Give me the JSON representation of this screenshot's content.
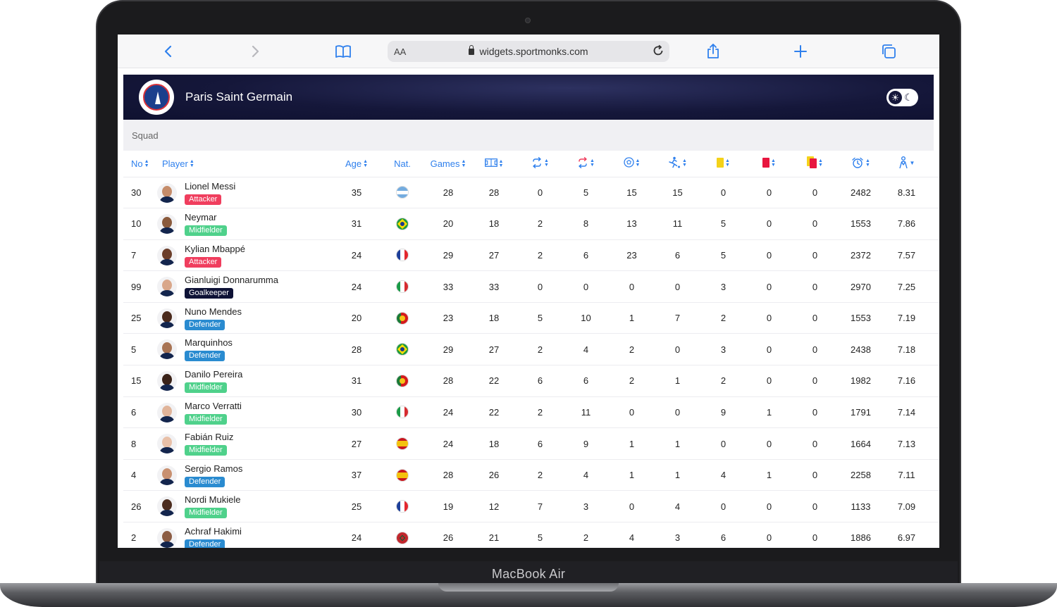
{
  "device": {
    "brand": "MacBook Air"
  },
  "browser": {
    "aa_label": "AA",
    "url": "widgets.sportmonks.com"
  },
  "team": {
    "name": "Paris Saint Germain"
  },
  "tabs": [
    "Squad"
  ],
  "colors": {
    "Attacker": "#f03e5e",
    "Midfielder": "#4fd18b",
    "Goalkeeper": "#0e1236",
    "Defender": "#2a8bd0",
    "accent": "#2f80ed"
  },
  "columns": {
    "no": "No",
    "player": "Player",
    "age": "Age",
    "nat": "Nat.",
    "games": "Games",
    "icons": [
      "lineups-pitch-icon",
      "subbed-in-icon",
      "subbed-out-icon",
      "goals-ball-icon",
      "assists-icon",
      "yellow-card-icon",
      "red-card-icon",
      "yellow-red-card-icon",
      "minutes-clock-icon",
      "rating-icon"
    ]
  },
  "players": [
    {
      "no": "30",
      "name": "Lionel Messi",
      "position": "Attacker",
      "age": "35",
      "nat": "argentina",
      "games": "28",
      "lineups": "28",
      "sub_in": "0",
      "sub_out": "5",
      "goals": "15",
      "assists": "15",
      "yellow": "0",
      "red": "0",
      "yellowred": "0",
      "minutes": "2482",
      "rating": "8.31"
    },
    {
      "no": "10",
      "name": "Neymar",
      "position": "Midfielder",
      "age": "31",
      "nat": "brazil",
      "games": "20",
      "lineups": "18",
      "sub_in": "2",
      "sub_out": "8",
      "goals": "13",
      "assists": "11",
      "yellow": "5",
      "red": "0",
      "yellowred": "0",
      "minutes": "1553",
      "rating": "7.86"
    },
    {
      "no": "7",
      "name": "Kylian Mbappé",
      "position": "Attacker",
      "age": "24",
      "nat": "france",
      "games": "29",
      "lineups": "27",
      "sub_in": "2",
      "sub_out": "6",
      "goals": "23",
      "assists": "6",
      "yellow": "5",
      "red": "0",
      "yellowred": "0",
      "minutes": "2372",
      "rating": "7.57"
    },
    {
      "no": "99",
      "name": "Gianluigi Donnarumma",
      "position": "Goalkeeper",
      "age": "24",
      "nat": "italy",
      "games": "33",
      "lineups": "33",
      "sub_in": "0",
      "sub_out": "0",
      "goals": "0",
      "assists": "0",
      "yellow": "3",
      "red": "0",
      "yellowred": "0",
      "minutes": "2970",
      "rating": "7.25"
    },
    {
      "no": "25",
      "name": "Nuno Mendes",
      "position": "Defender",
      "age": "20",
      "nat": "portugal",
      "games": "23",
      "lineups": "18",
      "sub_in": "5",
      "sub_out": "10",
      "goals": "1",
      "assists": "7",
      "yellow": "2",
      "red": "0",
      "yellowred": "0",
      "minutes": "1553",
      "rating": "7.19"
    },
    {
      "no": "5",
      "name": "Marquinhos",
      "position": "Defender",
      "age": "28",
      "nat": "brazil",
      "games": "29",
      "lineups": "27",
      "sub_in": "2",
      "sub_out": "4",
      "goals": "2",
      "assists": "0",
      "yellow": "3",
      "red": "0",
      "yellowred": "0",
      "minutes": "2438",
      "rating": "7.18"
    },
    {
      "no": "15",
      "name": "Danilo Pereira",
      "position": "Midfielder",
      "age": "31",
      "nat": "portugal",
      "games": "28",
      "lineups": "22",
      "sub_in": "6",
      "sub_out": "6",
      "goals": "2",
      "assists": "1",
      "yellow": "2",
      "red": "0",
      "yellowred": "0",
      "minutes": "1982",
      "rating": "7.16"
    },
    {
      "no": "6",
      "name": "Marco Verratti",
      "position": "Midfielder",
      "age": "30",
      "nat": "italy",
      "games": "24",
      "lineups": "22",
      "sub_in": "2",
      "sub_out": "11",
      "goals": "0",
      "assists": "0",
      "yellow": "9",
      "red": "1",
      "yellowred": "0",
      "minutes": "1791",
      "rating": "7.14"
    },
    {
      "no": "8",
      "name": "Fabián Ruiz",
      "position": "Midfielder",
      "age": "27",
      "nat": "spain",
      "games": "24",
      "lineups": "18",
      "sub_in": "6",
      "sub_out": "9",
      "goals": "1",
      "assists": "1",
      "yellow": "0",
      "red": "0",
      "yellowred": "0",
      "minutes": "1664",
      "rating": "7.13"
    },
    {
      "no": "4",
      "name": "Sergio Ramos",
      "position": "Defender",
      "age": "37",
      "nat": "spain",
      "games": "28",
      "lineups": "26",
      "sub_in": "2",
      "sub_out": "4",
      "goals": "1",
      "assists": "1",
      "yellow": "4",
      "red": "1",
      "yellowred": "0",
      "minutes": "2258",
      "rating": "7.11"
    },
    {
      "no": "26",
      "name": "Nordi Mukiele",
      "position": "Midfielder",
      "age": "25",
      "nat": "france",
      "games": "19",
      "lineups": "12",
      "sub_in": "7",
      "sub_out": "3",
      "goals": "0",
      "assists": "4",
      "yellow": "0",
      "red": "0",
      "yellowred": "0",
      "minutes": "1133",
      "rating": "7.09"
    },
    {
      "no": "2",
      "name": "Achraf Hakimi",
      "position": "Defender",
      "age": "24",
      "nat": "morocco",
      "games": "26",
      "lineups": "21",
      "sub_in": "5",
      "sub_out": "2",
      "goals": "4",
      "assists": "3",
      "yellow": "6",
      "red": "0",
      "yellowred": "0",
      "minutes": "1886",
      "rating": "6.97"
    }
  ]
}
